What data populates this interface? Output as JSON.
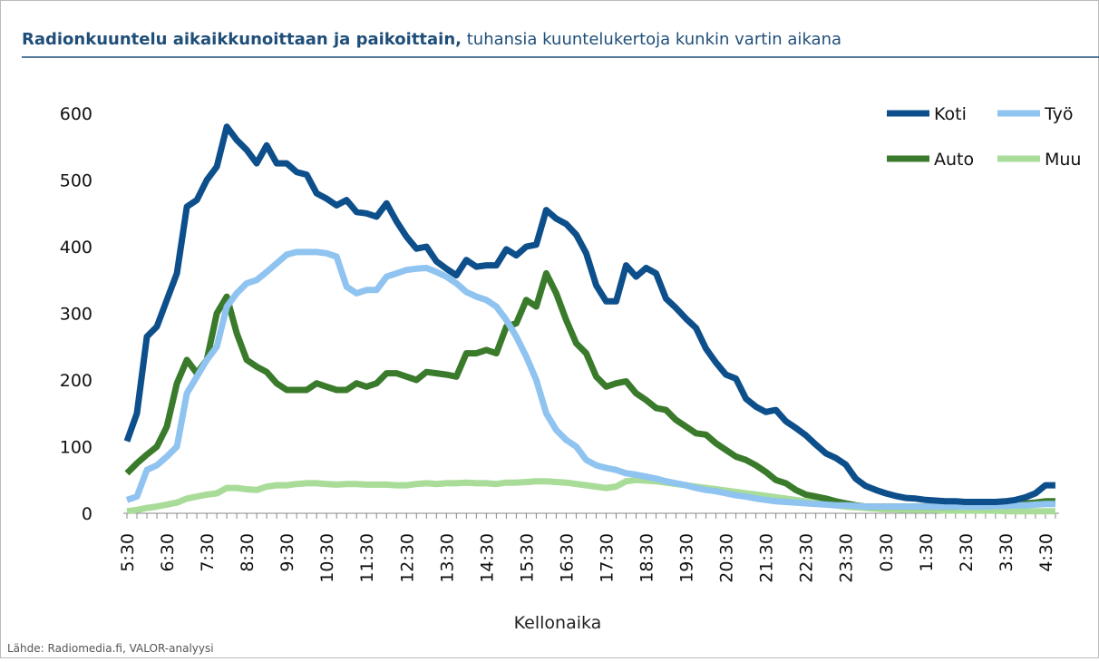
{
  "chart_data": {
    "type": "line",
    "title": "Radionkuuntelu aikaikkunoittaan ja paikoittain,",
    "subtitle": "tuhansia kuuntelukertoja kunkin vartin aikana",
    "x_label": "Kellonaika",
    "source": "Lähde: Radiomedia.fi, VALOR-analyysi",
    "categories": [
      "5:30",
      null,
      null,
      null,
      "6:30",
      null,
      null,
      null,
      "7:30",
      null,
      null,
      null,
      "8:30",
      null,
      null,
      null,
      "9:30",
      null,
      null,
      null,
      "10:30",
      null,
      null,
      null,
      "11:30",
      null,
      null,
      null,
      "12:30",
      null,
      null,
      null,
      "13:30",
      null,
      null,
      null,
      "14:30",
      null,
      null,
      null,
      "15:30",
      null,
      null,
      null,
      "16:30",
      null,
      null,
      null,
      "17:30",
      null,
      null,
      null,
      "18:30",
      null,
      null,
      null,
      "19:30",
      null,
      null,
      null,
      "20:30",
      null,
      null,
      null,
      "21:30",
      null,
      null,
      null,
      "22:30",
      null,
      null,
      null,
      "23:30",
      null,
      null,
      null,
      "0:30",
      null,
      null,
      null,
      "1:30",
      null,
      null,
      null,
      "2:30",
      null,
      null,
      null,
      "3:30",
      null,
      null,
      null,
      "4:30",
      null
    ],
    "ylim": [
      0,
      600
    ],
    "yticks": [
      0,
      100,
      200,
      300,
      400,
      500,
      600
    ],
    "legend": "top-right",
    "series": [
      {
        "name": "Koti",
        "color": "#0d4f8b",
        "values": [
          108,
          150,
          265,
          280,
          320,
          360,
          460,
          470,
          500,
          520,
          580,
          560,
          545,
          525,
          552,
          525,
          525,
          512,
          508,
          480,
          472,
          462,
          470,
          452,
          450,
          445,
          465,
          438,
          415,
          397,
          400,
          378,
          367,
          357,
          380,
          370,
          372,
          372,
          396,
          387,
          400,
          403,
          455,
          442,
          434,
          418,
          390,
          342,
          318,
          318,
          372,
          355,
          368,
          360,
          322,
          308,
          292,
          278,
          247,
          226,
          208,
          202,
          172,
          160,
          152,
          155,
          138,
          128,
          117,
          103,
          90,
          83,
          73,
          52,
          41,
          35,
          30,
          26,
          23,
          22,
          20,
          19,
          18,
          18,
          17,
          17,
          17,
          17,
          18,
          20,
          24,
          30,
          42,
          42
        ]
      },
      {
        "name": "Työ",
        "color": "#8fc3f0",
        "values": [
          20,
          25,
          65,
          72,
          85,
          100,
          180,
          205,
          230,
          250,
          310,
          330,
          345,
          350,
          362,
          375,
          388,
          392,
          392,
          392,
          390,
          385,
          340,
          330,
          335,
          335,
          355,
          360,
          365,
          367,
          368,
          362,
          355,
          345,
          332,
          325,
          320,
          310,
          290,
          265,
          235,
          200,
          150,
          125,
          110,
          100,
          80,
          72,
          68,
          65,
          60,
          58,
          55,
          52,
          48,
          45,
          42,
          38,
          35,
          33,
          30,
          27,
          25,
          22,
          20,
          18,
          17,
          16,
          15,
          14,
          13,
          12,
          12,
          11,
          10,
          10,
          10,
          10,
          10,
          10,
          10,
          10,
          10,
          10,
          10,
          10,
          10,
          11,
          11,
          12,
          12,
          13,
          14,
          14
        ]
      },
      {
        "name": "Auto",
        "color": "#3a7a2b",
        "values": [
          60,
          75,
          88,
          100,
          130,
          195,
          230,
          210,
          230,
          300,
          325,
          270,
          230,
          220,
          212,
          195,
          185,
          185,
          185,
          195,
          190,
          185,
          185,
          195,
          190,
          195,
          210,
          210,
          205,
          200,
          212,
          210,
          208,
          205,
          240,
          240,
          245,
          240,
          280,
          285,
          320,
          310,
          360,
          330,
          290,
          255,
          240,
          205,
          190,
          195,
          198,
          180,
          170,
          158,
          155,
          140,
          130,
          120,
          118,
          105,
          95,
          85,
          80,
          72,
          62,
          50,
          45,
          35,
          28,
          25,
          22,
          18,
          15,
          12,
          10,
          10,
          10,
          10,
          10,
          10,
          10,
          10,
          10,
          10,
          11,
          11,
          12,
          12,
          13,
          14,
          15,
          16,
          18,
          18
        ]
      },
      {
        "name": "Muu",
        "color": "#a8dc98",
        "values": [
          3,
          5,
          8,
          10,
          13,
          16,
          22,
          25,
          28,
          30,
          38,
          38,
          36,
          35,
          40,
          42,
          42,
          44,
          45,
          45,
          44,
          43,
          44,
          44,
          43,
          43,
          43,
          42,
          42,
          44,
          45,
          44,
          45,
          45,
          46,
          45,
          45,
          44,
          46,
          46,
          47,
          48,
          48,
          47,
          46,
          44,
          42,
          40,
          38,
          40,
          48,
          50,
          49,
          48,
          46,
          44,
          42,
          40,
          38,
          36,
          34,
          32,
          30,
          28,
          26,
          24,
          22,
          20,
          18,
          16,
          14,
          12,
          10,
          9,
          8,
          7,
          6,
          6,
          5,
          5,
          5,
          5,
          4,
          4,
          4,
          4,
          4,
          4,
          3,
          3,
          3,
          3,
          3,
          3
        ]
      }
    ]
  }
}
